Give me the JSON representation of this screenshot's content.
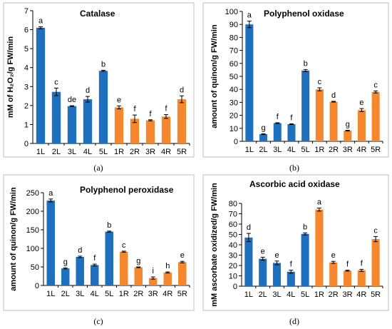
{
  "colors": {
    "L": "#1f6fbf",
    "R": "#f5872e",
    "text": "#000000"
  },
  "chart_data": [
    {
      "id": "a",
      "type": "bar",
      "caption": "(a)",
      "title": "Catalase",
      "ylabel": "mM of H₂O₂/g FW/min",
      "ylim": [
        0,
        7
      ],
      "yticks": [
        0,
        1,
        2,
        3,
        4,
        5,
        6,
        7
      ],
      "categories": [
        "1L",
        "2L",
        "3L",
        "4L",
        "5L",
        "1R",
        "2R",
        "3R",
        "4R",
        "5R"
      ],
      "values": [
        6.1,
        2.72,
        1.97,
        2.33,
        3.83,
        1.9,
        1.3,
        1.22,
        1.42,
        2.33
      ],
      "errors": [
        0.05,
        0.2,
        0.02,
        0.15,
        0.03,
        0.08,
        0.2,
        0.03,
        0.1,
        0.18
      ],
      "letters": [
        "a",
        "c",
        "de",
        "d",
        "b",
        "e",
        "f",
        "f",
        "f",
        "d"
      ],
      "grid": false
    },
    {
      "id": "b",
      "type": "bar",
      "caption": "(b)",
      "title": "Polyphenol oxidase",
      "ylabel": "amount of quinon/g FW/min",
      "ylim": [
        0,
        100
      ],
      "yticks": [
        0,
        10,
        20,
        30,
        40,
        50,
        60,
        70,
        80,
        90,
        100
      ],
      "categories": [
        "1L",
        "2L",
        "3L",
        "4L",
        "5L",
        "1R",
        "2R",
        "3R",
        "4R",
        "5R"
      ],
      "values": [
        90,
        5.5,
        14,
        13.2,
        54.5,
        40,
        30.5,
        8.2,
        24,
        38
      ],
      "errors": [
        2.5,
        0.3,
        0.3,
        0.3,
        0.8,
        1.2,
        0.3,
        0.3,
        1.2,
        0.8
      ],
      "letters": [
        "a",
        "g",
        "f",
        "f",
        "b",
        "c",
        "d",
        "g",
        "e",
        "c"
      ],
      "grid": false
    },
    {
      "id": "c",
      "type": "bar",
      "caption": "(c)",
      "title": "Polyphenol peroxidase",
      "ylabel": "amount of quinon/g FW/min",
      "ylim": [
        0,
        250
      ],
      "yticks": [
        0,
        50,
        100,
        150,
        200,
        250
      ],
      "categories": [
        "1L",
        "2L",
        "3L",
        "4L",
        "5L",
        "1R",
        "2R",
        "3R",
        "4R",
        "5R"
      ],
      "values": [
        229,
        46,
        77,
        55,
        145,
        91,
        49,
        20,
        35,
        63
      ],
      "errors": [
        4,
        1.5,
        2,
        2.5,
        1.5,
        1.5,
        1,
        3,
        1.5,
        2
      ],
      "letters": [
        "a",
        "g",
        "d",
        "f",
        "b",
        "c",
        "g",
        "i",
        "h",
        "e"
      ],
      "grid": false
    },
    {
      "id": "d",
      "type": "bar",
      "caption": "(d)",
      "title": "Ascorbic acid oxidase",
      "ylabel": "mM ascorbate oxidized/g FW/min",
      "ylim": [
        0,
        80
      ],
      "yticks": [
        0,
        10,
        20,
        30,
        40,
        50,
        60,
        70,
        80
      ],
      "categories": [
        "1L",
        "2L",
        "3L",
        "4L",
        "5L",
        "1R",
        "2R",
        "3R",
        "4R",
        "5R"
      ],
      "values": [
        47,
        26.5,
        22.5,
        14,
        50.5,
        74,
        23,
        15,
        15.3,
        45.5
      ],
      "errors": [
        4,
        1.5,
        1.8,
        1.5,
        1,
        1.5,
        1,
        0.5,
        1,
        2.5
      ],
      "letters": [
        "d",
        "e",
        "e",
        "f",
        "b",
        "a",
        "e",
        "f",
        "f",
        "c"
      ],
      "grid": false
    }
  ]
}
